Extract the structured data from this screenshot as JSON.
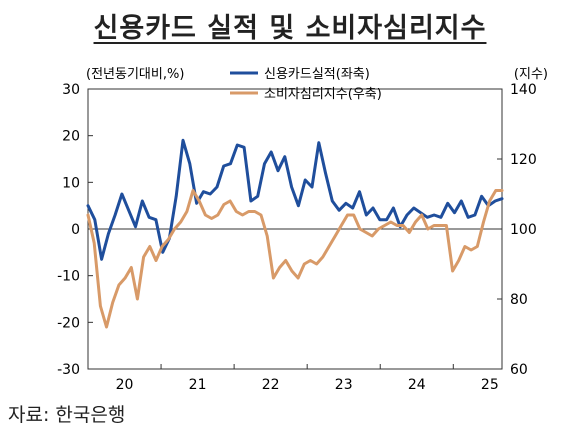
{
  "title": "신용카드 실적 및 소비자심리지수",
  "source": "자료: 한국은행",
  "chart_data": {
    "type": "line",
    "left_unit": "(전년동기대비,%)",
    "right_unit": "(지수)",
    "left_ticks": [
      "30",
      "20",
      "10",
      "0",
      "-10",
      "-20",
      "-30"
    ],
    "right_ticks": [
      "140",
      "120",
      "100",
      "80",
      "60"
    ],
    "x_ticks": [
      "20",
      "21",
      "22",
      "23",
      "24",
      "25"
    ],
    "ylim_left": [
      -30,
      30
    ],
    "ylim_right": [
      60,
      140
    ],
    "legend": "top-center",
    "series": [
      {
        "name": "신용카드실적(좌축)",
        "axis": "left",
        "color": "#1f4e9c",
        "values": [
          5,
          2,
          -6.5,
          -1,
          3,
          7.5,
          4,
          0.5,
          6,
          2.5,
          2,
          -5,
          -2,
          7,
          19,
          14,
          5.5,
          8,
          7.5,
          9,
          13.5,
          14,
          18,
          17.5,
          6,
          7,
          14,
          16.5,
          12.5,
          15.5,
          9,
          5,
          10.5,
          9,
          18.5,
          12,
          6,
          4,
          5.5,
          4.5,
          8,
          3,
          4.5,
          2,
          2,
          4.5,
          0.5,
          3,
          4.5,
          3.5,
          2.5,
          3,
          2.5,
          5.5,
          3.5,
          6,
          2.5,
          3,
          7,
          5,
          6,
          6.5
        ]
      },
      {
        "name": "소비자심리지수(우축)",
        "axis": "right",
        "color": "#d89a68",
        "values": [
          104,
          96,
          78,
          72,
          79,
          84,
          86,
          89,
          80,
          92,
          95,
          91,
          95,
          97,
          100,
          102,
          105,
          111,
          108,
          104,
          103,
          104,
          107,
          108,
          105,
          104,
          105,
          105,
          104,
          98,
          86,
          89,
          91,
          88,
          86,
          90,
          91,
          90,
          92,
          95,
          98,
          101,
          104,
          104,
          100,
          99,
          98,
          100,
          101,
          102,
          101,
          101,
          99,
          102,
          104,
          100,
          101,
          101,
          101,
          88,
          91,
          95,
          94,
          95,
          102,
          108,
          111,
          111
        ]
      }
    ]
  }
}
